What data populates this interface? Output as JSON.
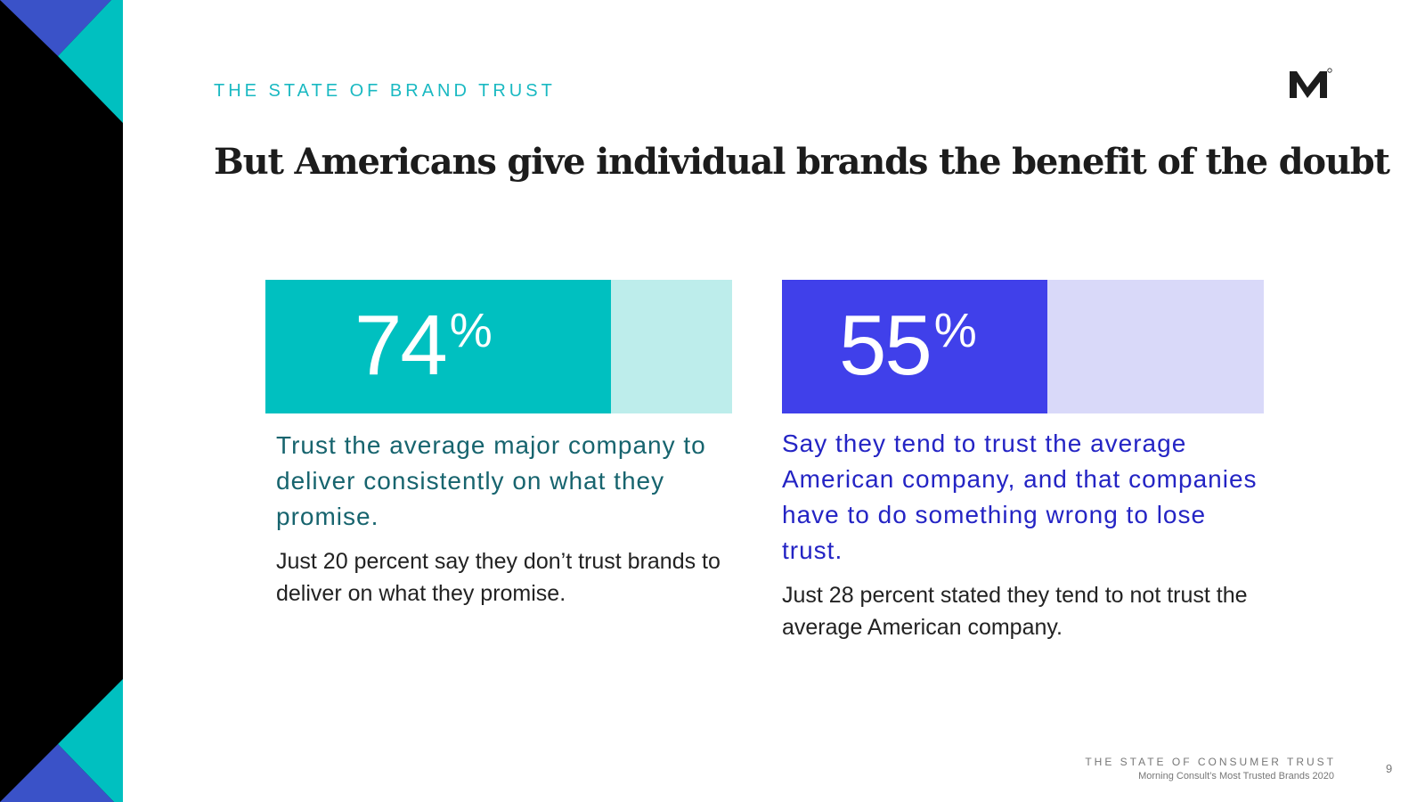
{
  "section_label": "THE STATE OF BRAND TRUST",
  "headline": "But Americans give individual brands the benefit of the doubt",
  "logo": {
    "icon": "morning-consult-logo-icon",
    "color": "#1c1c1c"
  },
  "stats": [
    {
      "value": "74",
      "unit": "%",
      "fraction": 0.74,
      "accent_color": "#00c0c0",
      "track_color": "#bdedeb",
      "text_color": "#17646e",
      "description": "Trust the average major company to deliver consistently on what they promise.",
      "note": "Just 20 percent say they don’t trust brands to deliver on what they promise."
    },
    {
      "value": "55",
      "unit": "%",
      "fraction": 0.55,
      "accent_color": "#4040ea",
      "track_color": "#d9d9f9",
      "text_color": "#2424c4",
      "description": "Say they tend to trust the average American company, and that companies have to do something wrong to lose trust.",
      "note": "Just 28 percent stated they tend to not trust the average American company."
    }
  ],
  "footer": {
    "title": "THE STATE OF CONSUMER TRUST",
    "subtitle": "Morning Consult’s Most Trusted Brands 2020",
    "page_number": "9"
  },
  "colors": {
    "teal": "#1ab9c2",
    "blue": "#3a52c8",
    "black": "#000000"
  }
}
